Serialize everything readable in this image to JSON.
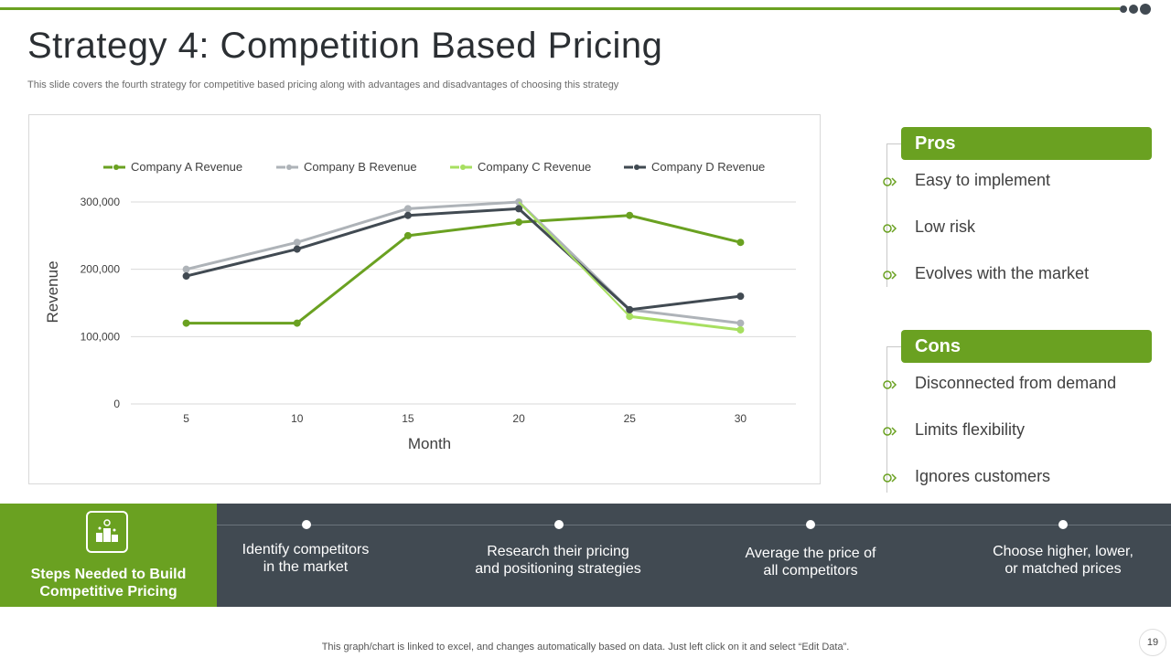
{
  "slide": {
    "title": "Strategy 4: Competition Based Pricing",
    "subtitle": "This slide covers the fourth strategy for competitive based pricing along with advantages and disadvantages of choosing this strategy",
    "page_number": "19",
    "footnote": "This graph/chart is linked to excel,  and changes automatically based on data. Just left click on it and select “Edit Data”."
  },
  "chart_data": {
    "type": "line",
    "title": "",
    "xlabel": "Month",
    "ylabel": "Revenue",
    "x": [
      5,
      10,
      15,
      20,
      25,
      30
    ],
    "x_tick_labels": [
      "5",
      "10",
      "15",
      "20",
      "25",
      "30"
    ],
    "y_tick_labels": [
      "0",
      "100,000",
      "200,000",
      "300,000"
    ],
    "y_ticks": [
      0,
      100000,
      200000,
      300000
    ],
    "ylim": [
      0,
      300000
    ],
    "grid": true,
    "legend_position": "top",
    "series": [
      {
        "name": "Company A Revenue",
        "color": "#6aa121",
        "values": [
          120000,
          120000,
          250000,
          270000,
          280000,
          240000
        ]
      },
      {
        "name": "Company B Revenue",
        "color": "#aeb3b8",
        "values": [
          200000,
          240000,
          290000,
          300000,
          140000,
          120000
        ]
      },
      {
        "name": "Company C Revenue",
        "color": "#a7df60",
        "values": [
          null,
          null,
          null,
          null,
          130000,
          110000
        ]
      },
      {
        "name": "Company D Revenue",
        "color": "#414a52",
        "values": [
          190000,
          230000,
          280000,
          290000,
          140000,
          160000
        ]
      }
    ]
  },
  "pros": {
    "header": "Pros",
    "items": [
      "Easy to implement",
      "Low risk",
      "Evolves with the market"
    ]
  },
  "cons": {
    "header": "Cons",
    "items": [
      "Disconnected from demand",
      "Limits flexibility",
      "Ignores customers"
    ]
  },
  "steps": {
    "label_line1": "Steps Needed to Build",
    "label_line2": "Competitive Pricing",
    "items": [
      {
        "line1": "Identify  competitors",
        "line2": "in the market"
      },
      {
        "line1": "Research their pricing",
        "line2": "and positioning strategies"
      },
      {
        "line1": "Average the price of",
        "line2": "all competitors"
      },
      {
        "line1": "Choose higher,  lower,",
        "line2": "or matched prices"
      }
    ]
  },
  "colors": {
    "accent": "#6aa121",
    "dark": "#414a52"
  }
}
